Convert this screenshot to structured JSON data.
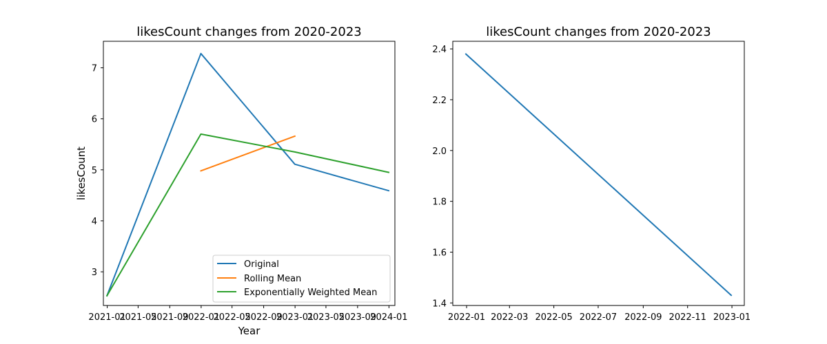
{
  "chart_data": [
    {
      "type": "line",
      "title": "likesCount changes from 2020-2023",
      "xlabel": "Year",
      "ylabel": "likesCount",
      "x_ticks": [
        "2021-01",
        "2021-05",
        "2021-09",
        "2022-01",
        "2022-05",
        "2022-09",
        "2023-01",
        "2023-05",
        "2023-09",
        "2024-01"
      ],
      "y_ticks": [
        "3",
        "4",
        "5",
        "6",
        "7"
      ],
      "xlim": [
        "2020-12-17",
        "2024-01-24"
      ],
      "ylim": [
        2.34,
        7.52
      ],
      "legend_position": "lower-right",
      "series": [
        {
          "name": "Original",
          "color": "#1f77b4",
          "points": [
            {
              "x": "2020-12-31",
              "y": 2.53
            },
            {
              "x": "2021-12-31",
              "y": 7.28
            },
            {
              "x": "2022-12-31",
              "y": 5.11
            },
            {
              "x": "2023-12-31",
              "y": 4.59
            }
          ]
        },
        {
          "name": "Rolling Mean",
          "color": "#ff7f0e",
          "points": [
            {
              "x": "2021-12-31",
              "y": 4.98
            },
            {
              "x": "2022-12-31",
              "y": 5.66
            }
          ]
        },
        {
          "name": "Exponentially Weighted Mean",
          "color": "#2ca02c",
          "points": [
            {
              "x": "2020-12-31",
              "y": 2.53
            },
            {
              "x": "2021-12-31",
              "y": 5.7
            },
            {
              "x": "2022-12-31",
              "y": 5.35
            },
            {
              "x": "2023-12-31",
              "y": 4.95
            }
          ]
        }
      ]
    },
    {
      "type": "line",
      "title": "likesCount changes from 2020-2023",
      "xlabel": "",
      "ylabel": "",
      "x_ticks": [
        "2022-01",
        "2022-03",
        "2022-05",
        "2022-07",
        "2022-09",
        "2022-11",
        "2023-01"
      ],
      "y_ticks": [
        "1.4",
        "1.6",
        "1.8",
        "2.0",
        "2.2",
        "2.4"
      ],
      "xlim": [
        "2021-12-13",
        "2023-01-18"
      ],
      "ylim": [
        1.39,
        2.43
      ],
      "series": [
        {
          "color": "#1f77b4",
          "points": [
            {
              "x": "2021-12-31",
              "y": 2.38
            },
            {
              "x": "2022-12-31",
              "y": 1.43
            }
          ]
        }
      ]
    }
  ]
}
